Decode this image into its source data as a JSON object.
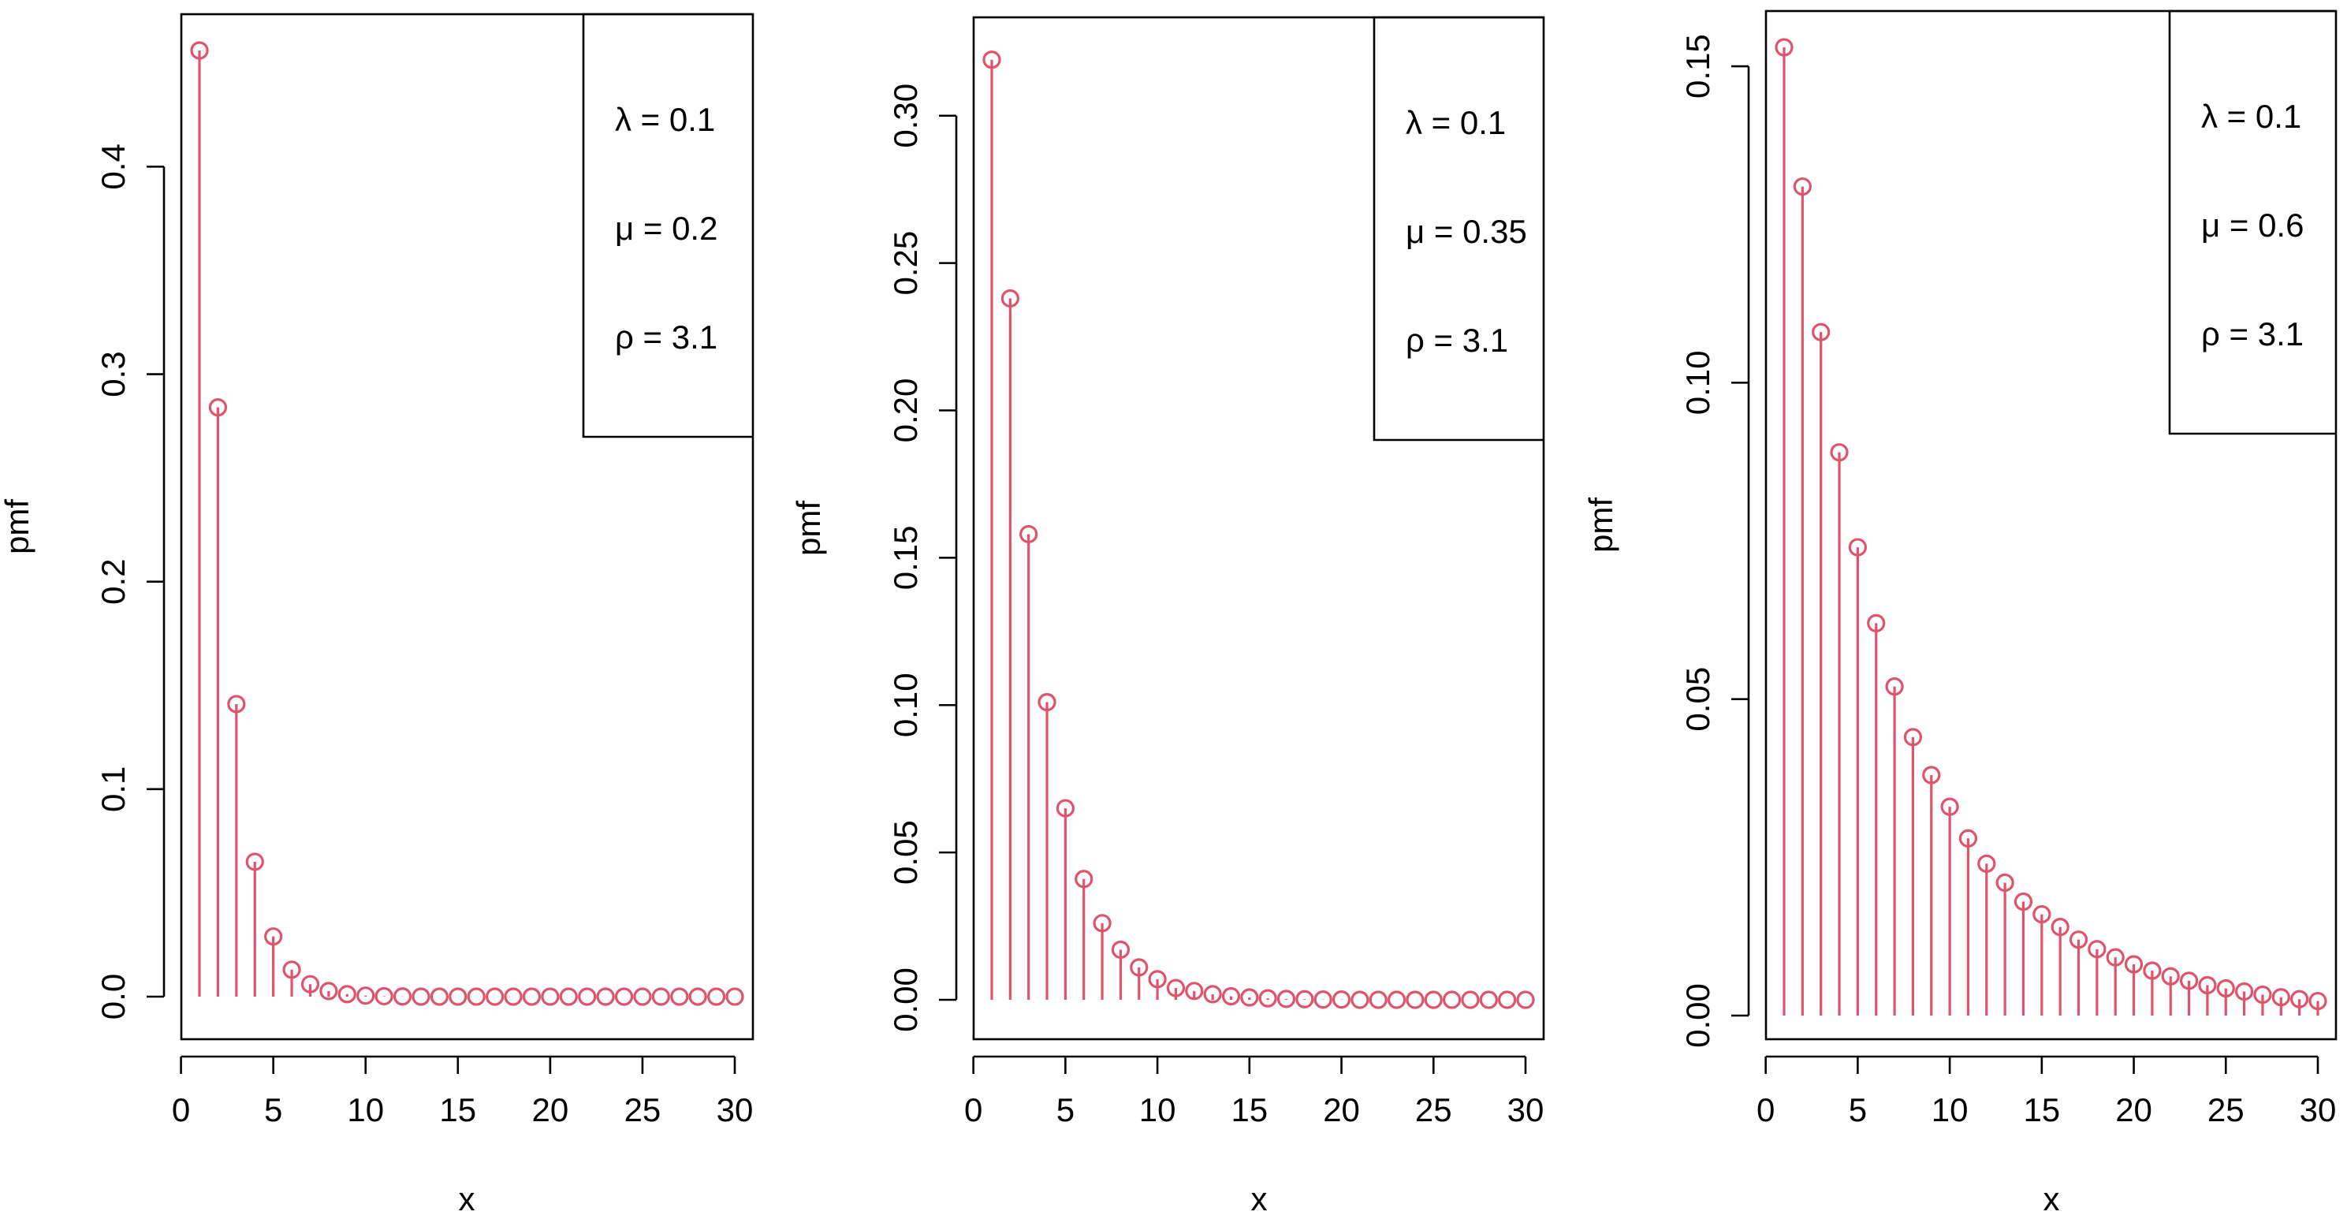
{
  "chart_data": [
    {
      "type": "scatter",
      "style": "stem-plot with open circle markers",
      "xlabel": "x",
      "ylabel": "pmf",
      "xlim": [
        1,
        30
      ],
      "ylim": [
        0,
        0.456
      ],
      "x_ticks": [
        0,
        5,
        10,
        15,
        20,
        25,
        30
      ],
      "y_ticks": [
        "0.0",
        "0.1",
        "0.2",
        "0.3",
        "0.4"
      ],
      "y_tick_values": [
        0,
        0.1,
        0.2,
        0.3,
        0.4
      ],
      "color": "#DF536B",
      "legend": [
        "λ = 0.1",
        "μ = 0.2",
        "ρ = 3.1"
      ],
      "legend_position": "top-right",
      "x": [
        1,
        2,
        3,
        4,
        5,
        6,
        7,
        8,
        9,
        10,
        11,
        12,
        13,
        14,
        15,
        16,
        17,
        18,
        19,
        20,
        21,
        22,
        23,
        24,
        25,
        26,
        27,
        28,
        29,
        30
      ],
      "values": [
        0.456,
        0.284,
        0.141,
        0.065,
        0.029,
        0.013,
        0.006,
        0.0027,
        0.0012,
        0.0005,
        0.0002,
        0.0001,
        0,
        0,
        0,
        0,
        0,
        0,
        0,
        0,
        0,
        0,
        0,
        0,
        0,
        0,
        0,
        0,
        0,
        0
      ]
    },
    {
      "type": "scatter",
      "style": "stem-plot with open circle markers",
      "xlabel": "x",
      "ylabel": "pmf",
      "xlim": [
        1,
        30
      ],
      "ylim": [
        0,
        0.32
      ],
      "x_ticks": [
        0,
        5,
        10,
        15,
        20,
        25,
        30
      ],
      "y_ticks": [
        "0.00",
        "0.05",
        "0.10",
        "0.15",
        "0.20",
        "0.25",
        "0.30"
      ],
      "y_tick_values": [
        0,
        0.05,
        0.1,
        0.15,
        0.2,
        0.25,
        0.3
      ],
      "color": "#DF536B",
      "legend": [
        "λ = 0.1",
        "μ = 0.35",
        "ρ = 3.1"
      ],
      "legend_position": "top-right",
      "x": [
        1,
        2,
        3,
        4,
        5,
        6,
        7,
        8,
        9,
        10,
        11,
        12,
        13,
        14,
        15,
        16,
        17,
        18,
        19,
        20,
        21,
        22,
        23,
        24,
        25,
        26,
        27,
        28,
        29,
        30
      ],
      "values": [
        0.319,
        0.238,
        0.158,
        0.101,
        0.065,
        0.041,
        0.026,
        0.017,
        0.011,
        0.007,
        0.004,
        0.003,
        0.0019,
        0.0012,
        0.0008,
        0.0005,
        0.0003,
        0.0002,
        0.0001,
        0.0001,
        0,
        0,
        0,
        0,
        0,
        0,
        0,
        0,
        0,
        0
      ]
    },
    {
      "type": "scatter",
      "style": "stem-plot with open circle markers",
      "xlabel": "x",
      "ylabel": "pmf",
      "xlim": [
        1,
        30
      ],
      "ylim": [
        0,
        0.153
      ],
      "x_ticks": [
        0,
        5,
        10,
        15,
        20,
        25,
        30
      ],
      "y_ticks": [
        "0.00",
        "0.05",
        "0.10",
        "0.15"
      ],
      "y_tick_values": [
        0,
        0.05,
        0.1,
        0.15
      ],
      "color": "#DF536B",
      "legend": [
        "λ = 0.1",
        "μ = 0.6",
        "ρ = 3.1"
      ],
      "legend_position": "top-right",
      "x": [
        1,
        2,
        3,
        4,
        5,
        6,
        7,
        8,
        9,
        10,
        11,
        12,
        13,
        14,
        15,
        16,
        17,
        18,
        19,
        20,
        21,
        22,
        23,
        24,
        25,
        26,
        27,
        28,
        29,
        30
      ],
      "values": [
        0.153,
        0.131,
        0.108,
        0.089,
        0.074,
        0.062,
        0.052,
        0.044,
        0.038,
        0.033,
        0.028,
        0.024,
        0.021,
        0.018,
        0.016,
        0.014,
        0.012,
        0.0105,
        0.0092,
        0.0081,
        0.0071,
        0.0062,
        0.0055,
        0.0048,
        0.0043,
        0.0038,
        0.0033,
        0.0029,
        0.0026,
        0.0023
      ]
    }
  ]
}
